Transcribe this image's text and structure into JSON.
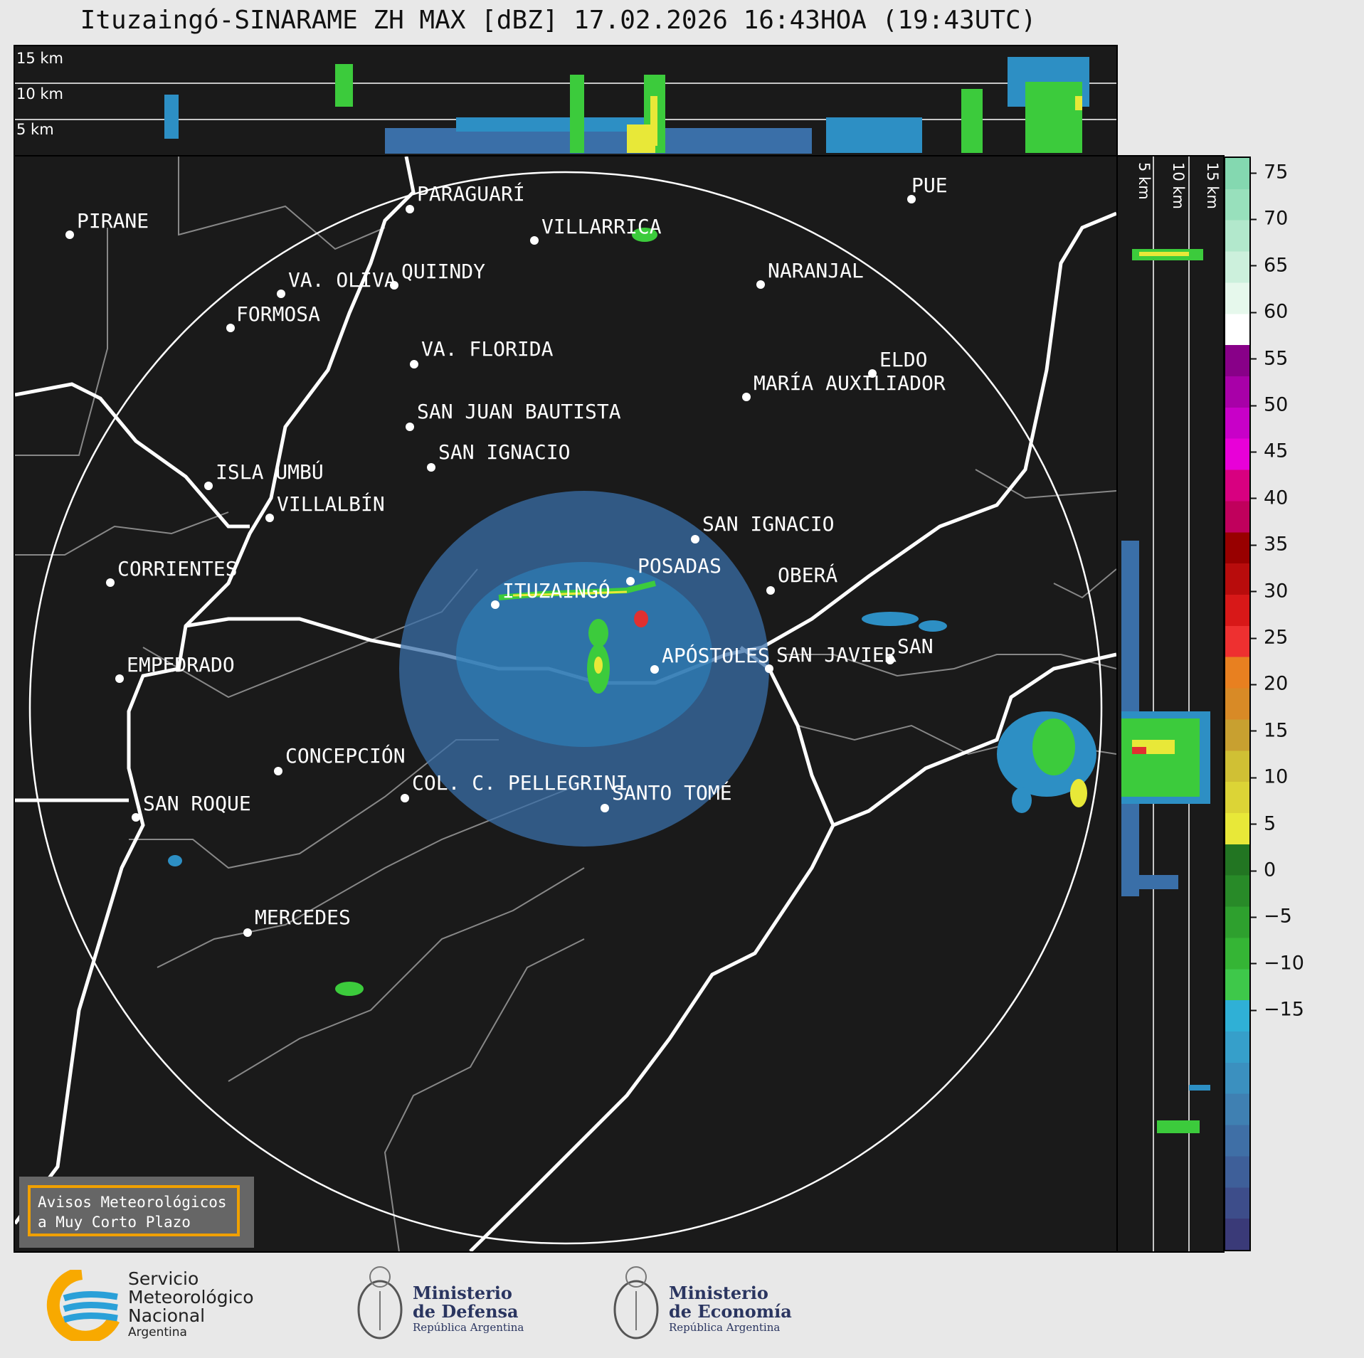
{
  "title": "Ituzaingó-SINARAME ZH MAX [dBZ] 17.02.2026 16:43HOA (19:43UTC)",
  "top_panel": {
    "alt_labels": [
      "15 km",
      "10 km",
      "5 km"
    ]
  },
  "side_panel": {
    "alt_labels": [
      "5 km",
      "10 km",
      "15 km"
    ]
  },
  "colorbar": {
    "ticks": [
      "75",
      "70",
      "65",
      "60",
      "55",
      "50",
      "45",
      "40",
      "35",
      "30",
      "25",
      "20",
      "15",
      "10",
      "5",
      "0",
      "−5",
      "−10",
      "−15"
    ]
  },
  "cities": [
    {
      "name": "PIRANE"
    },
    {
      "name": "PARAGUARÍ"
    },
    {
      "name": "VILLARRICA"
    },
    {
      "name": "QUIINDY"
    },
    {
      "name": "VA. OLIVA"
    },
    {
      "name": "FORMOSA"
    },
    {
      "name": "NARANJAL"
    },
    {
      "name": "PUE"
    },
    {
      "name": "VA. FLORIDA"
    },
    {
      "name": "ELDO"
    },
    {
      "name": "MARÍA AUXILIADOR"
    },
    {
      "name": "SAN JUAN BAUTISTA"
    },
    {
      "name": "SAN IGNACIO"
    },
    {
      "name": "ISLA UMBÚ"
    },
    {
      "name": "VILLALBÍN"
    },
    {
      "name": "SAN IGNACIO"
    },
    {
      "name": "POSADAS"
    },
    {
      "name": "CORRIENTES"
    },
    {
      "name": "ITUZAINGÓ"
    },
    {
      "name": "OBERÁ"
    },
    {
      "name": "EMPEDRADO"
    },
    {
      "name": "APÓSTOLES"
    },
    {
      "name": "SAN JAVIER"
    },
    {
      "name": "SAN"
    },
    {
      "name": "CONCEPCIÓN"
    },
    {
      "name": "COL. C. PELLEGRINI"
    },
    {
      "name": "SANTO TOMÉ"
    },
    {
      "name": "SAN ROQUE"
    },
    {
      "name": "MERCEDES"
    }
  ],
  "warning_box": {
    "line1": "Avisos Meteorológicos",
    "line2": "a Muy Corto Plazo"
  },
  "logos": {
    "smn": {
      "line1": "Servicio",
      "line2": "Meteorológico",
      "line3": "Nacional",
      "line4": "Argentina"
    },
    "defensa": {
      "line1": "Ministerio",
      "line2": "de Defensa",
      "line3": "República Argentina"
    },
    "economia": {
      "line1": "Ministerio",
      "line2": "de Economía",
      "line3": "República Argentina"
    }
  },
  "colors": {
    "background": "#1a1a1a",
    "range_ring": "#ffffff",
    "borders": "#ffffff",
    "provinces": "#888888",
    "warning_border": "#f0a000"
  }
}
